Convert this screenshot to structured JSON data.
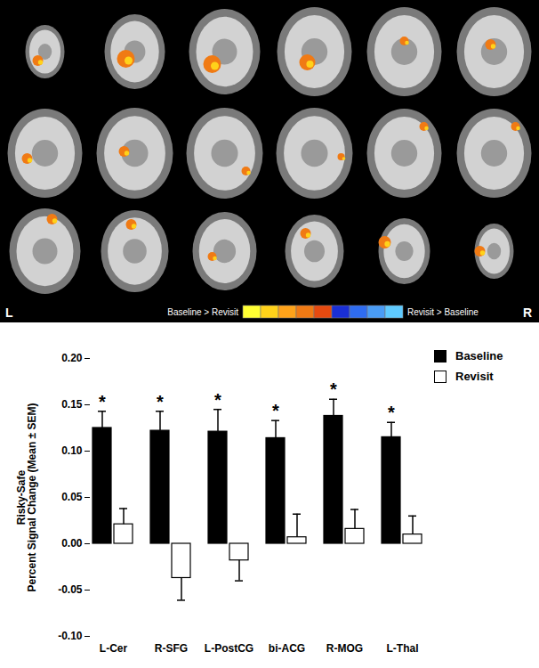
{
  "brain_panel": {
    "left_label": "L",
    "right_label": "R",
    "colorbar_labels": [
      "Baseline > Revisit",
      "Revisit > Baseline"
    ]
  },
  "chart_data": {
    "type": "bar",
    "y_label": "Risky-Safe\nPercent Signal Change (Mean ± SEM)",
    "categories": [
      "L-Cer",
      "R-SFG",
      "L-PostCG",
      "bi-ACG",
      "R-MOG",
      "L-Thal"
    ],
    "series": [
      {
        "name": "Baseline",
        "color": "#000000",
        "values": [
          0.125,
          0.122,
          0.121,
          0.114,
          0.138,
          0.115
        ],
        "sem": [
          0.018,
          0.021,
          0.024,
          0.019,
          0.018,
          0.016
        ],
        "annotations": [
          "*",
          "*",
          "*",
          "*",
          "*",
          "*"
        ]
      },
      {
        "name": "Revisit",
        "color": "#ffffff",
        "values": [
          0.021,
          -0.037,
          -0.018,
          0.007,
          0.016,
          0.01
        ],
        "sem": [
          0.017,
          0.024,
          0.022,
          0.025,
          0.021,
          0.02
        ]
      }
    ],
    "ylim": [
      -0.1,
      0.2
    ],
    "yticks": [
      {
        "value": -0.1,
        "label": "-0.10"
      },
      {
        "value": -0.05,
        "label": "-0.05"
      },
      {
        "value": 0,
        "label": "0.00"
      },
      {
        "value": 0.05,
        "label": "0.05"
      },
      {
        "value": 0.1,
        "label": "0.10"
      },
      {
        "value": 0.15,
        "label": "0.15"
      },
      {
        "value": 0.2,
        "label": "0.20"
      }
    ],
    "grid": false,
    "legend": "top-right"
  }
}
